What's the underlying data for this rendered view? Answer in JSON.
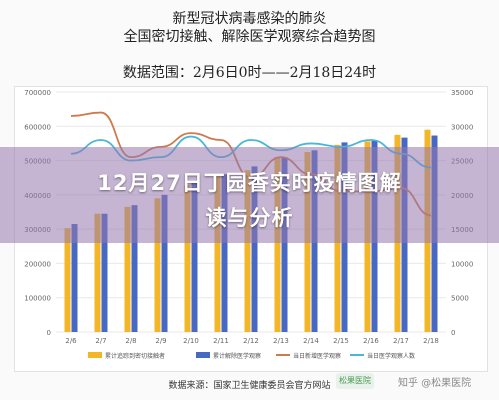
{
  "header": {
    "title_line1": "新型冠状病毒感染的肺炎",
    "title_line2": "全国密切接触、解除医学观察综合趋势图",
    "range": "数据范围：2月6日0时——2月18日24时"
  },
  "banner": {
    "line1": "12月27日丁园香实时疫情图解",
    "line2": "读与分析"
  },
  "footer": {
    "source": "数据来源：国家卫生健康委员会官方网站",
    "watermark_zhihu": "知乎 @松果医院",
    "watermark_logo": "松果医院"
  },
  "colors": {
    "bar_cumulative": "#f2b627",
    "bar_released": "#4769c4",
    "line_new_observation": "#cf7a4a",
    "line_under_observation": "#4ab7d8",
    "grid": "#e8e8e8",
    "axis_text": "#666666"
  },
  "chart_data": {
    "type": "bar",
    "categories": [
      "2/6",
      "2/7",
      "2/8",
      "2/9",
      "2/10",
      "2/11",
      "2/12",
      "2/13",
      "2/14",
      "2/15",
      "2/16",
      "2/17",
      "2/18"
    ],
    "y_left": {
      "ylim": [
        0,
        700000
      ],
      "ticks": [
        "0",
        "100000",
        "200000",
        "300000",
        "400000",
        "500000",
        "600000",
        "700000"
      ]
    },
    "y_right": {
      "ylim": [
        0,
        35000
      ],
      "ticks": [
        "0",
        "5000",
        "10000",
        "15000",
        "20000",
        "25000",
        "30000",
        "35000"
      ]
    },
    "series": [
      {
        "name": "累计追踪到密切接触者",
        "kind": "bar",
        "axis": "left",
        "values": [
          303000,
          345000,
          365000,
          390000,
          428000,
          454000,
          472000,
          510000,
          525000,
          546000,
          556000,
          575000,
          590000
        ]
      },
      {
        "name": "累计解除医学观察",
        "kind": "bar",
        "axis": "left",
        "values": [
          315000,
          345000,
          370000,
          400000,
          435000,
          460000,
          483000,
          510000,
          530000,
          553000,
          560000,
          567000,
          573000
        ]
      },
      {
        "name": "当日新增医学观察",
        "kind": "line",
        "axis": "right",
        "values": [
          31500,
          32000,
          25500,
          27000,
          29000,
          28000,
          22500,
          25500,
          23000,
          20500,
          20500,
          21000,
          17000
        ]
      },
      {
        "name": "当日医学观察人数",
        "kind": "line",
        "axis": "right",
        "values": [
          26000,
          28000,
          25000,
          25500,
          28500,
          25500,
          28000,
          26500,
          27500,
          27000,
          28000,
          26000,
          24000
        ]
      }
    ],
    "legend_position": "bottom",
    "grid": true
  }
}
